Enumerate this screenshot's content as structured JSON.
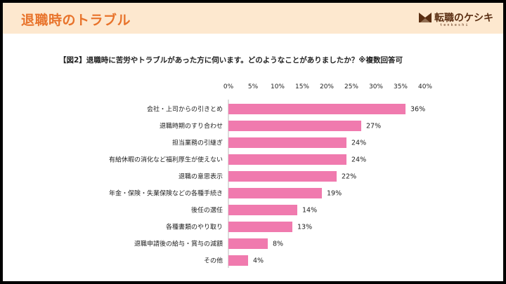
{
  "header": {
    "title": "退職時のトラブル",
    "logo_text": "転職のケシキ",
    "logo_sub": "tenkeshi"
  },
  "colors": {
    "header_bg": "#fde8cf",
    "header_title": "#e8732b",
    "bar": "#f07aae",
    "logo": "#5a2e12"
  },
  "chart_data": {
    "type": "bar",
    "orientation": "horizontal",
    "title": "【図2】退職時に苦労やトラブルがあった方に伺います。どのようなことがありましたか？※複数回答可",
    "categories": [
      "会社・上司からの引きとめ",
      "退職時期のすり合わせ",
      "担当業務の引継ぎ",
      "有給休暇の消化など福利厚生が使えない",
      "退職の意思表示",
      "年金・保険・失業保険などの各種手続き",
      "後任の選任",
      "各種書類のやり取り",
      "退職申請後の給与・賞与の減額",
      "その他"
    ],
    "values": [
      36,
      27,
      24,
      24,
      22,
      19,
      14,
      13,
      8,
      4
    ],
    "value_labels": [
      "36%",
      "27%",
      "24%",
      "24%",
      "22%",
      "19%",
      "14%",
      "13%",
      "8%",
      "4%"
    ],
    "x_ticks": [
      "0%",
      "5%",
      "10%",
      "15%",
      "20%",
      "25%",
      "30%",
      "35%",
      "40%"
    ],
    "xlim": [
      0,
      40
    ],
    "tick_position": "top",
    "grid": false,
    "legend": "none"
  }
}
